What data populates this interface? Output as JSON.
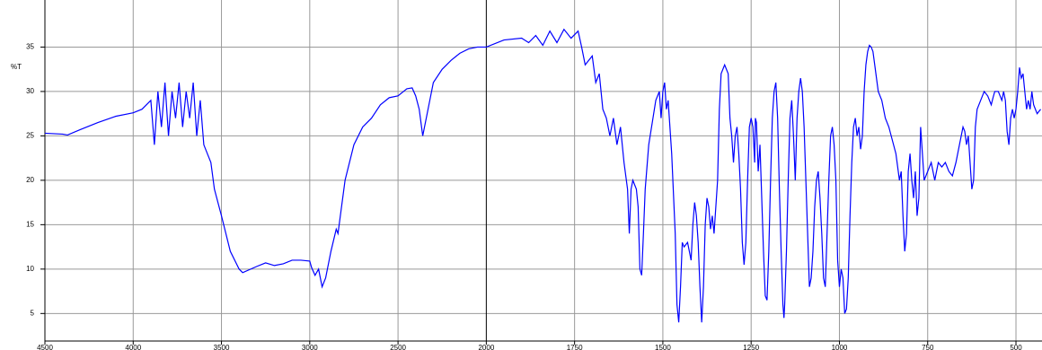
{
  "chart_data": {
    "type": "line",
    "y_label": "%T",
    "x": [
      4500,
      4400,
      4372,
      4300,
      4200,
      4100,
      4000,
      3950,
      3900,
      3880,
      3860,
      3840,
      3820,
      3800,
      3780,
      3760,
      3740,
      3720,
      3700,
      3680,
      3660,
      3640,
      3620,
      3600,
      3580,
      3560,
      3540,
      3500,
      3450,
      3400,
      3380,
      3300,
      3250,
      3200,
      3150,
      3100,
      3050,
      3000,
      2990,
      2970,
      2950,
      2930,
      2910,
      2880,
      2850,
      2840,
      2820,
      2800,
      2750,
      2700,
      2650,
      2600,
      2550,
      2500,
      2450,
      2420,
      2400,
      2380,
      2360,
      2340,
      2320,
      2300,
      2250,
      2200,
      2150,
      2100,
      2050,
      2000,
      1950,
      1900,
      1880,
      1860,
      1840,
      1820,
      1800,
      1780,
      1760,
      1740,
      1730,
      1720,
      1700,
      1690,
      1680,
      1670,
      1660,
      1650,
      1640,
      1630,
      1620,
      1610,
      1600,
      1595,
      1590,
      1585,
      1575,
      1570,
      1565,
      1560,
      1555,
      1550,
      1540,
      1520,
      1510,
      1505,
      1500,
      1495,
      1490,
      1485,
      1475,
      1465,
      1460,
      1455,
      1450,
      1445,
      1440,
      1430,
      1420,
      1415,
      1410,
      1405,
      1400,
      1395,
      1390,
      1385,
      1380,
      1375,
      1370,
      1365,
      1360,
      1355,
      1345,
      1340,
      1335,
      1325,
      1315,
      1310,
      1305,
      1300,
      1295,
      1290,
      1285,
      1280,
      1275,
      1270,
      1265,
      1260,
      1255,
      1250,
      1245,
      1240,
      1238,
      1235,
      1230,
      1225,
      1220,
      1215,
      1210,
      1205,
      1200,
      1195,
      1190,
      1185,
      1180,
      1175,
      1170,
      1165,
      1160,
      1157,
      1155,
      1150,
      1145,
      1140,
      1135,
      1130,
      1125,
      1120,
      1115,
      1110,
      1105,
      1100,
      1095,
      1090,
      1085,
      1080,
      1075,
      1070,
      1065,
      1060,
      1055,
      1050,
      1045,
      1040,
      1035,
      1030,
      1025,
      1020,
      1015,
      1010,
      1005,
      1000,
      995,
      990,
      985,
      980,
      975,
      970,
      965,
      960,
      955,
      950,
      945,
      940,
      935,
      930,
      925,
      920,
      915,
      910,
      905,
      900,
      890,
      880,
      870,
      860,
      850,
      840,
      830,
      825,
      820,
      815,
      810,
      805,
      800,
      795,
      790,
      785,
      780,
      775,
      770,
      765,
      760,
      750,
      740,
      730,
      720,
      710,
      700,
      690,
      680,
      670,
      660,
      650,
      645,
      640,
      635,
      630,
      625,
      620,
      615,
      610,
      600,
      590,
      580,
      570,
      565,
      560,
      550,
      540,
      535,
      530,
      525,
      520,
      515,
      510,
      505,
      500,
      495,
      490,
      485,
      480,
      475,
      470,
      465,
      460,
      455,
      450,
      445,
      440,
      430
    ],
    "series": [
      {
        "color": "#0000ff",
        "values": [
          25.3,
          25.2,
          25.1,
          25.7,
          26.5,
          27.2,
          27.6,
          28,
          29,
          24,
          30,
          26,
          31,
          25,
          30,
          27,
          31,
          26,
          30,
          27,
          31,
          25,
          29,
          24,
          23,
          22,
          19,
          16,
          12,
          10,
          9.6,
          10.3,
          10.7,
          10.4,
          10.6,
          11,
          11,
          10.9,
          10.2,
          9.3,
          10,
          8,
          9,
          12,
          14.5,
          14,
          17,
          20,
          24,
          26,
          27,
          28.5,
          29.3,
          29.5,
          30.3,
          30.4,
          29.5,
          28,
          25,
          27,
          29,
          31,
          32.5,
          33.5,
          34.3,
          34.8,
          35,
          35,
          35.8,
          36,
          35.5,
          36.3,
          35.2,
          36.8,
          35.5,
          37,
          36,
          36.8,
          35,
          33,
          34,
          31,
          32,
          28,
          27,
          25,
          27,
          24,
          26,
          22,
          19,
          14,
          19,
          20,
          19,
          17,
          10,
          9.3,
          14,
          19,
          24,
          29,
          30,
          27,
          30,
          31,
          28,
          29,
          23,
          14,
          6,
          4,
          8,
          13,
          12.5,
          13,
          11,
          15,
          17.5,
          16,
          13,
          8,
          4,
          8,
          15,
          18,
          17,
          14.5,
          16,
          14,
          20,
          28,
          32,
          33,
          32,
          27,
          25,
          22,
          25,
          26,
          23,
          19,
          13,
          10.5,
          13,
          20,
          26,
          27,
          26,
          22,
          27,
          26.5,
          21,
          24,
          18,
          12,
          7,
          6.5,
          12,
          20,
          27,
          30,
          31,
          27,
          19,
          12,
          6,
          4.5,
          6,
          12,
          20,
          27,
          29,
          25,
          20,
          27,
          30,
          31.5,
          30,
          26,
          20,
          14,
          8,
          9,
          12,
          17,
          20,
          21,
          18,
          14,
          9,
          8,
          14,
          20,
          25,
          26,
          24,
          20,
          11,
          8,
          10,
          9,
          5,
          5.5,
          9,
          16,
          22,
          26,
          27,
          25,
          26,
          23.5,
          25,
          30,
          33,
          34.5,
          35.2,
          35,
          34.5,
          33,
          30,
          29,
          27,
          26,
          24.5,
          23,
          20,
          21,
          16,
          12,
          14,
          21,
          23,
          20,
          18,
          21,
          16,
          18,
          26,
          23,
          20,
          21,
          22,
          20,
          22,
          21.5,
          22,
          21,
          20.5,
          22,
          24,
          26,
          25.5,
          24,
          25,
          22,
          19,
          20,
          26,
          28,
          29,
          30,
          29.5,
          28.5,
          29.3,
          30,
          30,
          29,
          30,
          29,
          25.5,
          24,
          27,
          28,
          27,
          28,
          30,
          32.7,
          31.5,
          32,
          30,
          28,
          29,
          28,
          30,
          28.5,
          28,
          27.5,
          28
        ]
      }
    ],
    "xlim": [
      4500,
      425
    ],
    "x_expand_below": 2000,
    "x_expand_factor": 2,
    "xticks": [
      4500,
      4000,
      3500,
      3000,
      2500,
      2000,
      1750,
      1500,
      1250,
      1000,
      750,
      500
    ],
    "ylim": [
      1.9,
      40.3
    ],
    "yticks": [
      5,
      10,
      15,
      20,
      25,
      30,
      35
    ],
    "grid": true
  }
}
